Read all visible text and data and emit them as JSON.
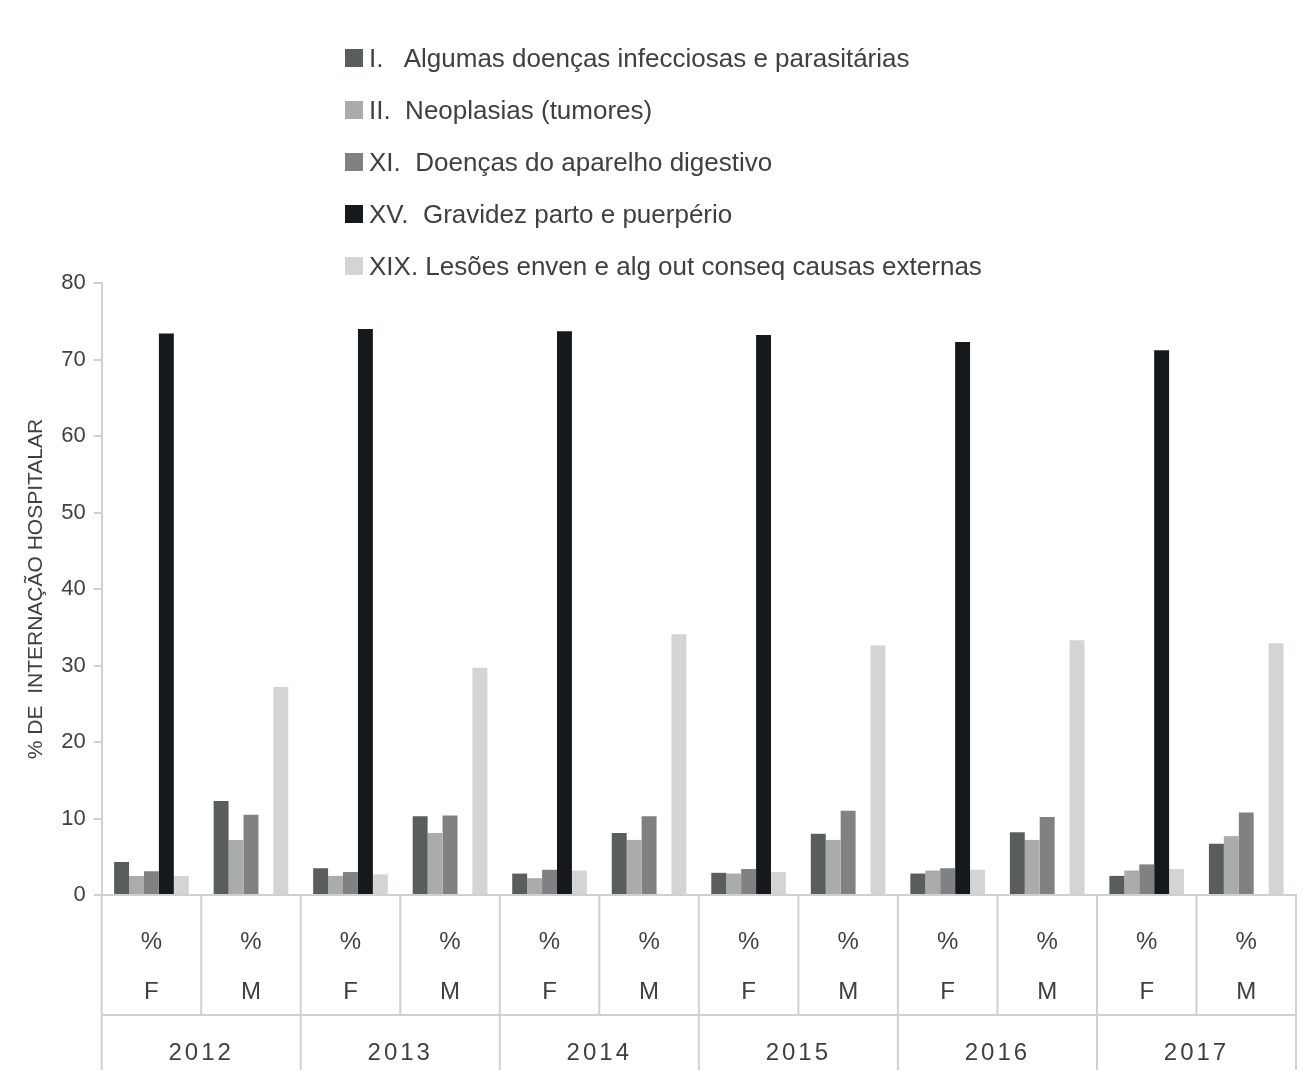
{
  "chart_data": {
    "type": "bar",
    "ylabel": "% DE  INTERNAÇÃO HOSPITALAR",
    "categories": [
      "%\nF",
      "%\nM",
      "%\nF",
      "%\nM",
      "%\nF",
      "%\nM",
      "%\nF",
      "%\nM",
      "%\nF",
      "%\nM",
      "%\nF",
      "%\nM"
    ],
    "annotations": [
      "2012",
      "2013",
      "2014",
      "2015",
      "2016",
      "2017"
    ],
    "series": [
      {
        "name": "I.   Algumas doenças infecciosas e parasitárias",
        "color": "#595d5e",
        "values": [
          4.3,
          12.3,
          3.5,
          10.3,
          2.8,
          8.1,
          2.9,
          8.0,
          2.8,
          8.2,
          2.5,
          6.7
        ]
      },
      {
        "name": "II.  Neoplasias (tumores)",
        "color": "#a9abac",
        "values": [
          2.5,
          7.2,
          2.5,
          8.1,
          2.2,
          7.2,
          2.8,
          7.2,
          3.2,
          7.2,
          3.2,
          7.7
        ]
      },
      {
        "name": "XI.  Doenças do aparelho digestivo",
        "color": "#7f8182",
        "values": [
          3.1,
          10.5,
          3.0,
          10.4,
          3.3,
          10.3,
          3.4,
          11.0,
          3.5,
          10.2,
          4.0,
          10.8
        ]
      },
      {
        "name": "XV.  Gravidez parto e puerpério",
        "color": "#16191b",
        "values": [
          73.4,
          null,
          74.0,
          null,
          73.7,
          null,
          73.2,
          null,
          72.3,
          null,
          71.2,
          null
        ]
      },
      {
        "name": "XIX. Lesões enven e alg out conseq causas externas",
        "color": "#d3d4d4",
        "values": [
          2.5,
          27.2,
          2.7,
          29.7,
          3.2,
          34.1,
          3.0,
          32.6,
          3.3,
          33.3,
          3.4,
          32.9
        ]
      }
    ],
    "ylim": [
      0,
      80
    ],
    "yticks": [
      0,
      10,
      20,
      30,
      40,
      50,
      60,
      70,
      80
    ],
    "grid": false,
    "legend": "top"
  }
}
